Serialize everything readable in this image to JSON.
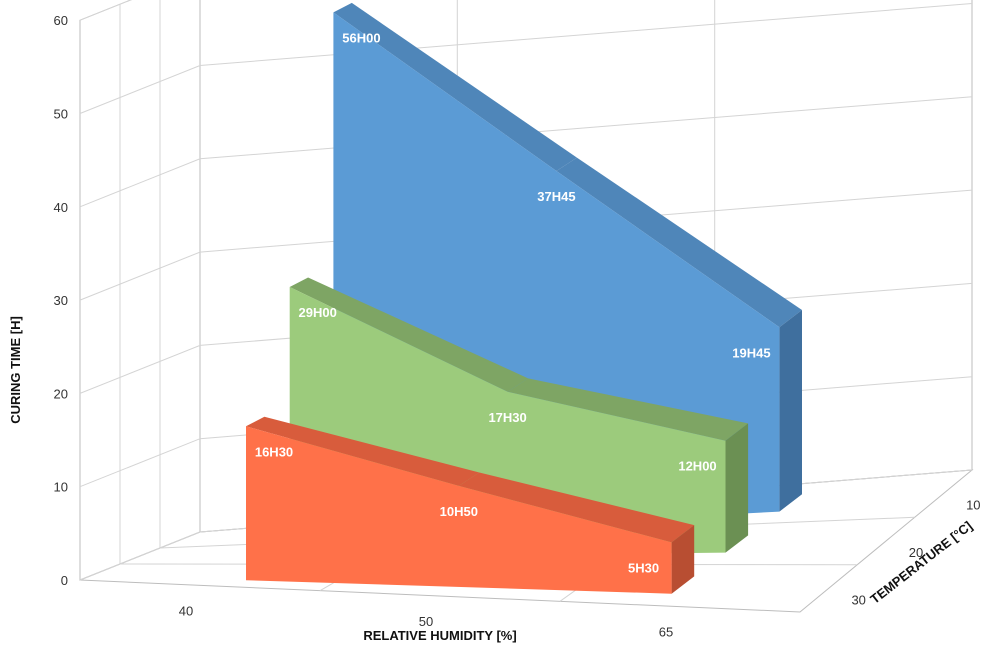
{
  "chart_data": {
    "type": "area",
    "view": "3d",
    "xlabel": "RELATIVE HUMIDITY  [%]",
    "ylabel": "CURING TIME [H]",
    "zlabel": "TEMPERATURE [°C]",
    "categories": [
      "40",
      "50",
      "65"
    ],
    "y_ticks": [
      "0",
      "10",
      "20",
      "30",
      "40",
      "50",
      "60"
    ],
    "z_ticks": [
      "10",
      "20",
      "30"
    ],
    "ylim": [
      0,
      60
    ],
    "grid": true,
    "legend": "none",
    "series": [
      {
        "depth": "10",
        "values": [
          56.0,
          37.75,
          19.75
        ],
        "labels": [
          "56H00",
          "37H45",
          "19H45"
        ],
        "color": "#5b9bd5",
        "top_color": "#4f86b9",
        "side_color": "#3f6f9e"
      },
      {
        "depth": "20",
        "values": [
          29.0,
          17.5,
          12.0
        ],
        "labels": [
          "29H00",
          "17H30",
          "12H00"
        ],
        "color": "#9ccb7c",
        "top_color": "#7ea564",
        "side_color": "#6b9053"
      },
      {
        "depth": "30",
        "values": [
          16.5,
          10.83,
          5.5
        ],
        "labels": [
          "16H30",
          "10H50",
          "5H30"
        ],
        "color": "#ff7149",
        "top_color": "#d85c3c",
        "side_color": "#b84e32"
      }
    ]
  }
}
